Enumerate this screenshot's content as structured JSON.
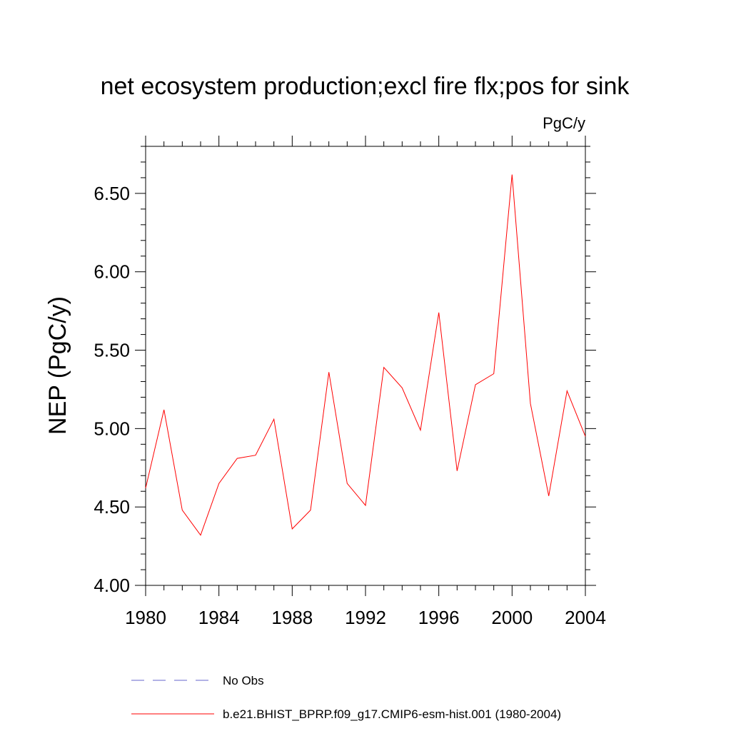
{
  "chart_data": {
    "type": "line",
    "title": "net ecosystem production;excl fire flx;pos for sink",
    "units_label": "PgC/y",
    "xlabel": "",
    "ylabel": "NEP  (PgC/y)",
    "xlim": [
      1980,
      2004
    ],
    "ylim": [
      4.0,
      6.8
    ],
    "x_ticks": [
      1980,
      1984,
      1988,
      1992,
      1996,
      2000,
      2004
    ],
    "x_tick_labels": [
      "1980",
      "1984",
      "1988",
      "1992",
      "1996",
      "2000",
      "2004"
    ],
    "y_ticks": [
      4.0,
      4.5,
      5.0,
      5.5,
      6.0,
      6.5
    ],
    "y_tick_labels": [
      "4.00",
      "4.50",
      "5.00",
      "5.50",
      "6.00",
      "6.50"
    ],
    "grid": false,
    "legend_position": "bottom",
    "series": [
      {
        "name": "b.e21.BHIST_BPRP.f09_g17.CMIP6-esm-hist.001 (1980-2004)",
        "color": "#ff0000",
        "style": "solid",
        "x": [
          1980,
          1981,
          1982,
          1983,
          1984,
          1985,
          1986,
          1987,
          1988,
          1989,
          1990,
          1991,
          1992,
          1993,
          1994,
          1995,
          1996,
          1997,
          1998,
          1999,
          2000,
          2001,
          2002,
          2003,
          2004
        ],
        "values": [
          4.62,
          5.12,
          4.48,
          4.32,
          4.65,
          4.81,
          4.83,
          5.06,
          4.36,
          4.48,
          5.36,
          4.65,
          4.51,
          5.39,
          5.26,
          4.99,
          5.74,
          4.73,
          5.28,
          5.35,
          6.62,
          5.16,
          4.57,
          5.24,
          4.95
        ]
      }
    ],
    "legend": [
      {
        "label": "No Obs",
        "color": "#6666cc",
        "style": "dashed"
      },
      {
        "label": "b.e21.BHIST_BPRP.f09_g17.CMIP6-esm-hist.001 (1980-2004)",
        "color": "#ff0000",
        "style": "solid"
      }
    ]
  }
}
